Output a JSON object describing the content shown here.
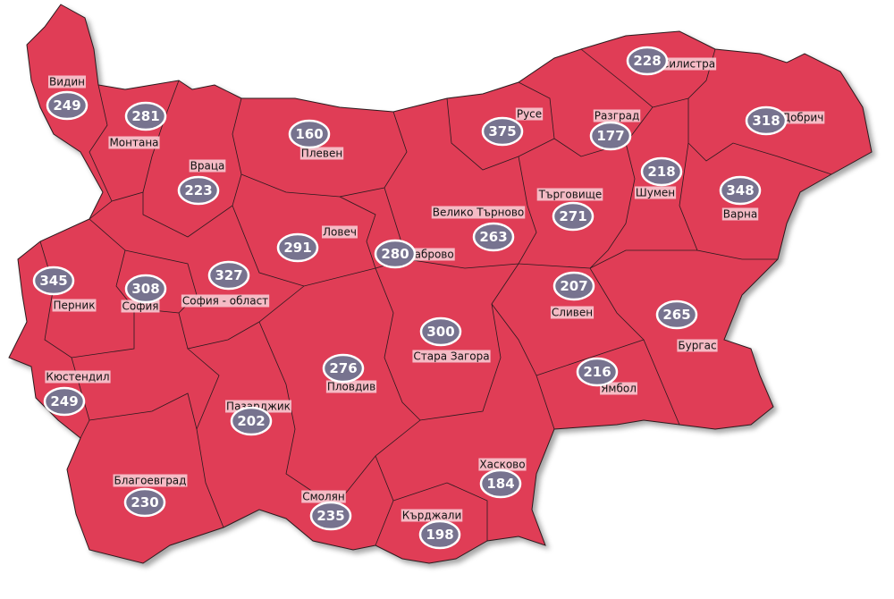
{
  "regions": [
    {
      "name": "Видин",
      "value": 249
    },
    {
      "name": "Монтана",
      "value": 281
    },
    {
      "name": "Враца",
      "value": 223
    },
    {
      "name": "Плевен",
      "value": 160
    },
    {
      "name": "Русе",
      "value": 375
    },
    {
      "name": "Силистра",
      "value": 228
    },
    {
      "name": "Разград",
      "value": 177
    },
    {
      "name": "Добрич",
      "value": 318
    },
    {
      "name": "Шумен",
      "value": 218
    },
    {
      "name": "Търговище",
      "value": 271
    },
    {
      "name": "Варна",
      "value": 348
    },
    {
      "name": "Велико Търново",
      "value": 263
    },
    {
      "name": "Ловеч",
      "value": 291
    },
    {
      "name": "Габрово",
      "value": 280
    },
    {
      "name": "София - област",
      "value": 327
    },
    {
      "name": "Перник",
      "value": 345
    },
    {
      "name": "София",
      "value": 308
    },
    {
      "name": "Сливен",
      "value": 207
    },
    {
      "name": "Бургас",
      "value": 265
    },
    {
      "name": "Стара Загора",
      "value": 300
    },
    {
      "name": "Кюстендил",
      "value": 249
    },
    {
      "name": "Пловдив",
      "value": 276
    },
    {
      "name": "Ямбол",
      "value": 216
    },
    {
      "name": "Пазарджик",
      "value": 202
    },
    {
      "name": "Хасково",
      "value": 184
    },
    {
      "name": "Благоевград",
      "value": 230
    },
    {
      "name": "Смолян",
      "value": 235
    },
    {
      "name": "Кърджали",
      "value": 198
    }
  ]
}
